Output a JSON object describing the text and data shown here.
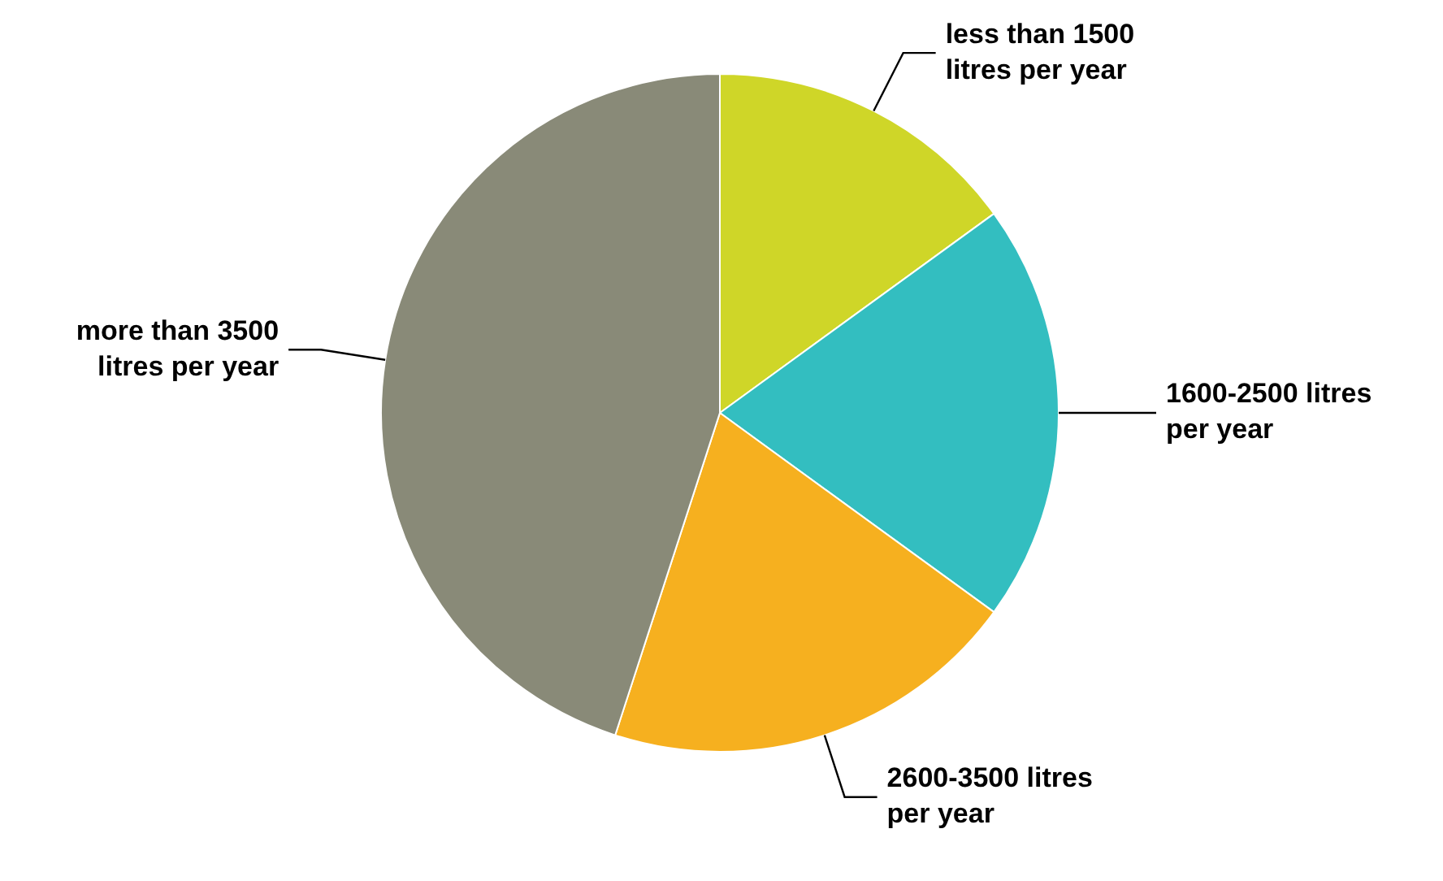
{
  "chart_data": {
    "type": "pie",
    "categories": [
      "less than 1500 litres per year",
      "1600-2500 litres per year",
      "2600-3500 litres per year",
      "more than 3500 litres per year"
    ],
    "values": [
      15,
      20,
      20,
      45
    ],
    "colors": [
      "#cfd628",
      "#33bec0",
      "#f6b01f",
      "#898a78"
    ],
    "legend": false
  }
}
